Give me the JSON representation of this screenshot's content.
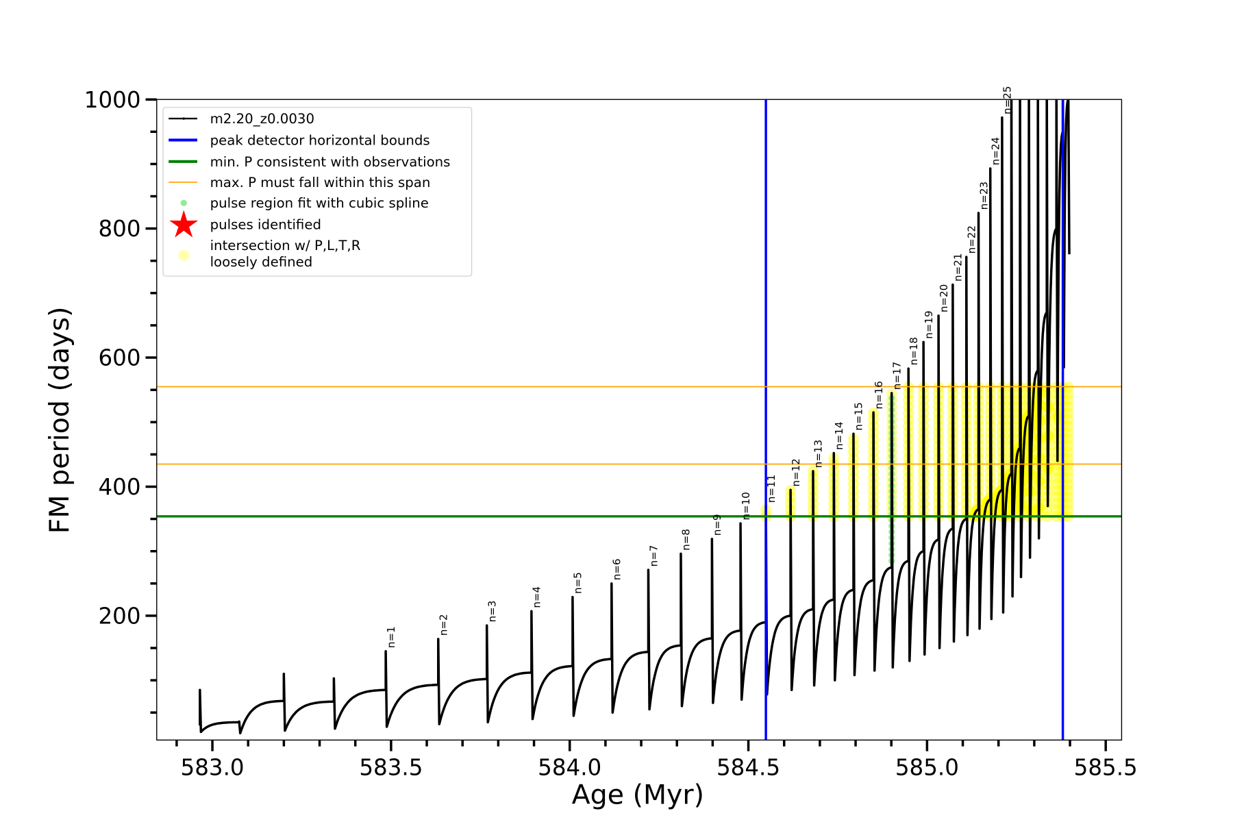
{
  "chart_data": {
    "type": "line",
    "title": "",
    "xlabel": "Age (Myr)",
    "ylabel": "FM period (days)",
    "xlim": [
      582.844,
      585.545
    ],
    "ylim": [
      7,
      1000
    ],
    "x_major_ticks": [
      583.0,
      583.5,
      584.0,
      584.5,
      585.0,
      585.5
    ],
    "x_tick_labels": [
      "583.0",
      "583.5",
      "584.0",
      "584.5",
      "585.0",
      "585.5"
    ],
    "x_minor_step": 0.1,
    "y_major_ticks": [
      200,
      400,
      600,
      800,
      1000
    ],
    "y_tick_labels": [
      "200",
      "400",
      "600",
      "800",
      "1000"
    ],
    "y_minor_step": 50,
    "grid": false,
    "legend_placement": "upper-left",
    "colors": {
      "model": "#000000",
      "bounds": "#0000ff",
      "minP": "#008000",
      "maxP": "#ffa500",
      "spline": "#90ee90",
      "pulses": "#ff0000",
      "intersection": "#ffff00"
    },
    "legend": [
      {
        "label": "m2.20_z0.0030",
        "kind": "line-marker",
        "color": "#000000"
      },
      {
        "label": "peak detector horizontal bounds",
        "kind": "line",
        "color": "#0000ff"
      },
      {
        "label": "min. P consistent with observations",
        "kind": "line",
        "color": "#008000"
      },
      {
        "label": "max. P must fall within this span",
        "kind": "thin-line",
        "color": "#ffa500"
      },
      {
        "label": "pulse region fit with cubic spline",
        "kind": "dot",
        "color": "#90ee90"
      },
      {
        "label": "pulses identified",
        "kind": "star",
        "color": "#ff0000"
      },
      {
        "label": "intersection w/ P,L,T,R",
        "label2": "loosely defined",
        "kind": "circle",
        "color": "#ffffb0"
      }
    ],
    "vertical_bounds": [
      584.549,
      585.38
    ],
    "min_period": 354,
    "max_period_span": [
      435,
      555
    ],
    "series_name": "m2.20_z0.0030",
    "cycles": [
      {
        "label": "",
        "age": 582.965,
        "pre": 30,
        "peak": 85,
        "dip": 20
      },
      {
        "label": "",
        "age": 583.075,
        "pre": 35,
        "peak": 36,
        "dip": 18
      },
      {
        "label": "",
        "age": 583.2,
        "pre": 68,
        "peak": 110,
        "dip": 22
      },
      {
        "label": "",
        "age": 583.34,
        "pre": 67,
        "peak": 103,
        "dip": 25
      },
      {
        "label": "n=1",
        "age": 583.485,
        "pre": 85,
        "peak": 145,
        "dip": 28
      },
      {
        "label": "n=2",
        "age": 583.632,
        "pre": 93,
        "peak": 164,
        "dip": 32
      },
      {
        "label": "n=3",
        "age": 583.768,
        "pre": 102,
        "peak": 185,
        "dip": 35
      },
      {
        "label": "n=4",
        "age": 583.893,
        "pre": 112,
        "peak": 207,
        "dip": 40
      },
      {
        "label": "n=5",
        "age": 584.008,
        "pre": 122,
        "peak": 229,
        "dip": 45
      },
      {
        "label": "n=6",
        "age": 584.117,
        "pre": 133,
        "peak": 250,
        "dip": 50
      },
      {
        "label": "n=7",
        "age": 584.22,
        "pre": 144,
        "peak": 271,
        "dip": 55
      },
      {
        "label": "n=8",
        "age": 584.311,
        "pre": 154,
        "peak": 296,
        "dip": 60
      },
      {
        "label": "n=9",
        "age": 584.398,
        "pre": 165,
        "peak": 319,
        "dip": 65
      },
      {
        "label": "n=10",
        "age": 584.478,
        "pre": 177,
        "peak": 343,
        "dip": 70
      },
      {
        "label": "n=11",
        "age": 584.549,
        "pre": 190,
        "peak": 370,
        "dip": 78
      },
      {
        "label": "n=12",
        "age": 584.618,
        "pre": 200,
        "peak": 395,
        "dip": 85
      },
      {
        "label": "n=13",
        "age": 584.681,
        "pre": 210,
        "peak": 424,
        "dip": 92
      },
      {
        "label": "n=14",
        "age": 584.739,
        "pre": 225,
        "peak": 452,
        "dip": 100
      },
      {
        "label": "n=15",
        "age": 584.794,
        "pre": 240,
        "peak": 482,
        "dip": 108
      },
      {
        "label": "n=16",
        "age": 584.85,
        "pre": 255,
        "peak": 515,
        "dip": 115
      },
      {
        "label": "n=17",
        "age": 584.901,
        "pre": 275,
        "peak": 545,
        "dip": 120
      },
      {
        "label": "n=18",
        "age": 584.948,
        "pre": 285,
        "peak": 583,
        "dip": 130
      },
      {
        "label": "n=19",
        "age": 584.99,
        "pre": 300,
        "peak": 624,
        "dip": 140
      },
      {
        "label": "n=20",
        "age": 585.032,
        "pre": 318,
        "peak": 665,
        "dip": 150
      },
      {
        "label": "n=21",
        "age": 585.072,
        "pre": 335,
        "peak": 713,
        "dip": 160
      },
      {
        "label": "n=22",
        "age": 585.11,
        "pre": 350,
        "peak": 756,
        "dip": 170
      },
      {
        "label": "n=23",
        "age": 585.144,
        "pre": 365,
        "peak": 824,
        "dip": 180
      },
      {
        "label": "n=24",
        "age": 585.177,
        "pre": 380,
        "peak": 893,
        "dip": 195
      },
      {
        "label": "n=25",
        "age": 585.21,
        "pre": 395,
        "peak": 972,
        "dip": 205
      },
      {
        "label": "",
        "age": 585.236,
        "pre": 420,
        "peak": 1050,
        "dip": 230
      },
      {
        "label": "",
        "age": 585.26,
        "pre": 460,
        "peak": 1050,
        "dip": 260
      },
      {
        "label": "",
        "age": 585.285,
        "pre": 510,
        "peak": 1050,
        "dip": 290
      },
      {
        "label": "",
        "age": 585.31,
        "pre": 580,
        "peak": 1050,
        "dip": 320
      },
      {
        "label": "",
        "age": 585.335,
        "pre": 670,
        "peak": 1050,
        "dip": 370
      },
      {
        "label": "",
        "age": 585.362,
        "pre": 800,
        "peak": 1050,
        "dip": 440
      },
      {
        "label": "",
        "age": 585.38,
        "pre": 950,
        "peak": 1050,
        "dip": 585
      },
      {
        "label": "",
        "age": 585.395,
        "pre": 1000,
        "peak": 1050,
        "dip": 760
      }
    ],
    "spline_pulse": "n=17"
  }
}
